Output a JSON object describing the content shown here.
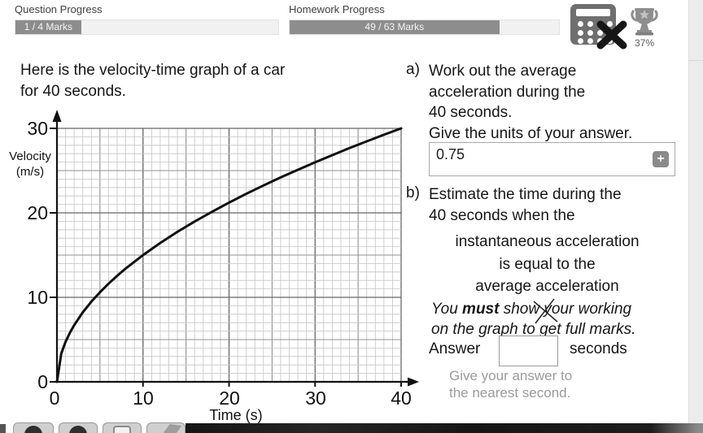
{
  "header": {
    "question_progress": {
      "label": "Question Progress",
      "value_text": "1 / 4 Marks",
      "fraction": 0.25
    },
    "homework_progress": {
      "label": "Homework Progress",
      "value_text": "49 / 63 Marks",
      "fraction": 0.778
    },
    "trophy": {
      "percent_text": "37%"
    },
    "icons": {
      "no_calculator": "calculator-with-cross",
      "trophy": "trophy-with-star"
    }
  },
  "question": {
    "intro": "Here is the velocity-time graph of a car\nfor 40 seconds.",
    "part_a": {
      "prefix": "a)",
      "text": "Work out the average\nacceleration during the\n40 seconds.\nGive the units of your answer.",
      "answer_value": "0.75",
      "add_button_label": "+"
    },
    "part_b": {
      "prefix": "b)",
      "text": "Estimate the time during the\n40 seconds when the",
      "centered_text": "instantaneous acceleration\nis equal to the\naverage acceleration",
      "note_part1": "You ",
      "note_part2": "must",
      "note_part3": " show your working",
      "note_line2": "on the graph to get full marks.",
      "answer_label": "Answer",
      "answer_value": "",
      "units_label": "seconds",
      "hint": "Give your answer to\nthe nearest second."
    }
  },
  "chart_data": {
    "type": "line",
    "title": "",
    "xlabel": "Time (s)",
    "ylabel": "Velocity\n(m/s)",
    "xlim": [
      0,
      40
    ],
    "ylim": [
      0,
      30
    ],
    "x_ticks": [
      0,
      10,
      20,
      30,
      40
    ],
    "y_ticks": [
      0,
      10,
      20,
      30
    ],
    "grid": {
      "minor_step": 1,
      "medium_step": 5,
      "major_step": 10,
      "on": true
    },
    "series": [
      {
        "name": "car velocity",
        "model": "v = 30*sqrt(t/40)",
        "x": [
          0,
          0.5,
          1,
          1.5,
          2,
          3,
          4,
          5,
          6,
          7,
          8,
          10,
          12,
          14,
          16,
          18,
          20,
          22,
          24,
          26,
          28,
          30,
          32,
          34,
          36,
          38,
          40
        ],
        "y": [
          0,
          3.35,
          4.74,
          5.81,
          6.71,
          8.22,
          9.49,
          10.61,
          11.62,
          12.55,
          13.42,
          15,
          16.43,
          17.75,
          18.97,
          20.12,
          21.21,
          22.25,
          23.24,
          24.19,
          25.1,
          25.98,
          26.83,
          27.66,
          28.46,
          29.24,
          30
        ]
      }
    ],
    "annotations": [
      {
        "type": "cross-mark",
        "note": "handwritten X over working-note area"
      }
    ],
    "colors": {
      "curve": "#111111",
      "grid_minor": "#c4c4c4",
      "grid_medium": "#909090",
      "grid_major": "#666666",
      "axis": "#111111"
    }
  }
}
